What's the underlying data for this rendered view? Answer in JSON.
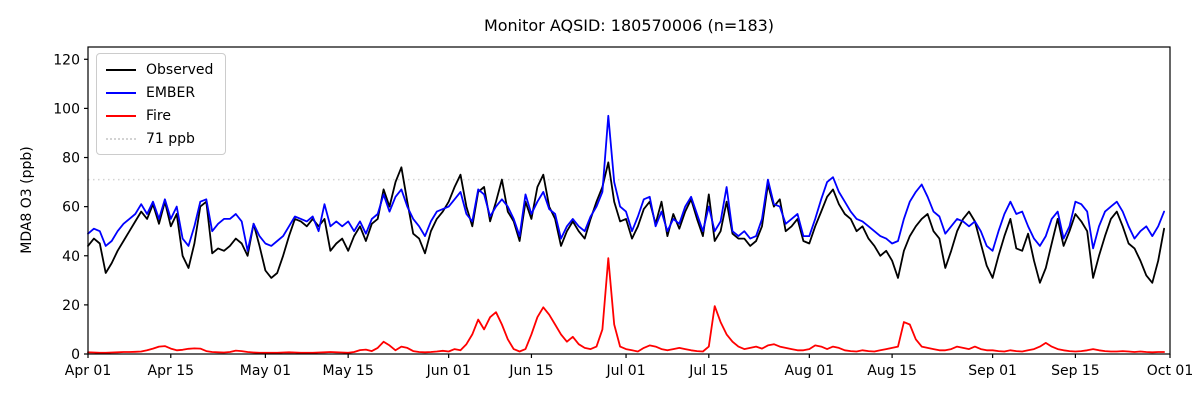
{
  "chart_data": {
    "type": "line",
    "title": "Monitor AQSID: 180570006 (n=183)",
    "ylabel": "MDA8 O3 (ppb)",
    "xlabel": "",
    "x_tick_labels": [
      "Apr 01",
      "Apr 15",
      "May 01",
      "May 15",
      "Jun 01",
      "Jun 15",
      "Jul 01",
      "Jul 15",
      "Aug 01",
      "Aug 15",
      "Sep 01",
      "Sep 15",
      "Oct 01"
    ],
    "x_tick_days": [
      0,
      14,
      30,
      44,
      61,
      75,
      91,
      105,
      122,
      136,
      153,
      167,
      183
    ],
    "y_ticks": [
      0,
      20,
      40,
      60,
      80,
      100,
      120
    ],
    "xlim": [
      0,
      183
    ],
    "ylim": [
      0,
      125
    ],
    "grid": false,
    "legend_position": "upper left",
    "threshold": {
      "label": "71 ppb",
      "value": 71,
      "color": "#d3d3d3",
      "style": "dotted"
    },
    "series": [
      {
        "name": "Observed",
        "color": "#000000",
        "values": [
          44,
          47,
          45,
          33,
          37,
          42,
          46,
          50,
          54,
          58,
          55,
          61,
          53,
          62,
          52,
          57,
          40,
          35,
          45,
          60,
          62,
          41,
          43,
          42,
          44,
          47,
          45,
          40,
          53,
          44,
          34,
          31,
          33,
          40,
          48,
          55,
          54,
          52,
          55,
          52,
          55,
          42,
          45,
          47,
          42,
          48,
          52,
          46,
          53,
          55,
          67,
          60,
          70,
          76,
          62,
          49,
          47,
          41,
          50,
          55,
          58,
          62,
          68,
          73,
          60,
          52,
          66,
          68,
          54,
          62,
          71,
          58,
          54,
          46,
          62,
          55,
          68,
          73,
          60,
          55,
          44,
          50,
          54,
          50,
          47,
          55,
          62,
          68,
          78,
          62,
          54,
          55,
          47,
          52,
          59,
          62,
          53,
          62,
          48,
          57,
          51,
          58,
          63,
          55,
          48,
          65,
          46,
          50,
          62,
          49,
          47,
          47,
          44,
          46,
          52,
          69,
          60,
          63,
          50,
          52,
          55,
          46,
          45,
          52,
          58,
          64,
          67,
          61,
          57,
          55,
          50,
          52,
          47,
          44,
          40,
          42,
          38,
          31,
          42,
          48,
          52,
          55,
          57,
          50,
          47,
          35,
          42,
          50,
          55,
          58,
          54,
          45,
          36,
          31,
          40,
          48,
          55,
          43,
          42,
          49,
          38,
          29,
          35,
          45,
          55,
          44,
          50,
          57,
          54,
          50,
          31,
          40,
          48,
          55,
          58,
          52,
          45,
          43,
          38,
          32,
          29,
          38,
          51
        ]
      },
      {
        "name": "EMBER",
        "color": "#0000ff",
        "values": [
          49,
          51,
          50,
          44,
          46,
          50,
          53,
          55,
          57,
          61,
          57,
          62,
          55,
          63,
          55,
          60,
          47,
          44,
          52,
          62,
          63,
          50,
          53,
          55,
          55,
          57,
          54,
          42,
          53,
          48,
          45,
          44,
          46,
          48,
          52,
          56,
          55,
          54,
          56,
          50,
          61,
          52,
          54,
          52,
          54,
          50,
          54,
          49,
          55,
          57,
          65,
          58,
          64,
          67,
          60,
          55,
          52,
          48,
          54,
          58,
          59,
          60,
          63,
          66,
          57,
          54,
          67,
          65,
          56,
          60,
          63,
          60,
          55,
          48,
          65,
          57,
          62,
          66,
          59,
          57,
          47,
          52,
          55,
          52,
          50,
          56,
          60,
          66,
          97,
          70,
          60,
          58,
          50,
          56,
          63,
          64,
          52,
          58,
          50,
          55,
          53,
          60,
          64,
          57,
          50,
          60,
          50,
          54,
          68,
          50,
          48,
          50,
          47,
          48,
          55,
          71,
          61,
          60,
          53,
          55,
          57,
          48,
          48,
          55,
          63,
          70,
          72,
          66,
          62,
          58,
          55,
          54,
          52,
          50,
          48,
          47,
          45,
          46,
          55,
          62,
          66,
          69,
          64,
          58,
          56,
          49,
          52,
          55,
          54,
          52,
          54,
          50,
          44,
          42,
          50,
          57,
          62,
          57,
          58,
          52,
          47,
          44,
          48,
          55,
          58,
          47,
          52,
          62,
          61,
          58,
          43,
          52,
          58,
          60,
          62,
          58,
          52,
          47,
          50,
          52,
          48,
          52,
          58
        ]
      },
      {
        "name": "Fire",
        "color": "#ff0000",
        "values": [
          0.7,
          0.6,
          0.5,
          0.5,
          0.6,
          0.7,
          0.8,
          0.8,
          0.9,
          1,
          1.5,
          2.2,
          3,
          3.2,
          2.2,
          1.5,
          1.7,
          2.1,
          2.3,
          2.2,
          1.2,
          0.8,
          0.7,
          0.6,
          0.8,
          1.4,
          1.2,
          0.8,
          0.6,
          0.5,
          0.5,
          0.5,
          0.5,
          0.6,
          0.7,
          0.6,
          0.5,
          0.5,
          0.5,
          0.6,
          0.7,
          0.8,
          0.7,
          0.6,
          0.5,
          0.8,
          1.6,
          1.8,
          1.2,
          2.5,
          5,
          3.5,
          1.5,
          3,
          2.5,
          1.2,
          0.8,
          0.7,
          0.8,
          1,
          1.3,
          1,
          2,
          1.5,
          4,
          8,
          14,
          10,
          15,
          17,
          12,
          6,
          2,
          1,
          2,
          8,
          15,
          19,
          16,
          12,
          8,
          5,
          7,
          4,
          2.5,
          2,
          3,
          10,
          39,
          12,
          3,
          2,
          1.5,
          1,
          2.5,
          3.5,
          3,
          2,
          1.5,
          2,
          2.5,
          2,
          1.5,
          1.2,
          1,
          3,
          19.5,
          13,
          8,
          5,
          3,
          2,
          2.5,
          3,
          2.2,
          3.5,
          4,
          3,
          2.5,
          2,
          1.5,
          1.5,
          2,
          3.5,
          3,
          2,
          3,
          2.5,
          1.5,
          1.2,
          1,
          1.5,
          1.2,
          1,
          1.5,
          2,
          2.5,
          3,
          13,
          12,
          6,
          3,
          2.5,
          2,
          1.5,
          1.5,
          2,
          3,
          2.5,
          2,
          3,
          2,
          1.5,
          1.5,
          1.2,
          1,
          1.5,
          1.2,
          1,
          1.5,
          2,
          3,
          4.5,
          3,
          2,
          1.5,
          1.2,
          1,
          1.2,
          1.5,
          2,
          1.5,
          1.2,
          1,
          1,
          1.2,
          1,
          0.8,
          1,
          0.8,
          0.7,
          0.8,
          0.8
        ]
      }
    ]
  }
}
